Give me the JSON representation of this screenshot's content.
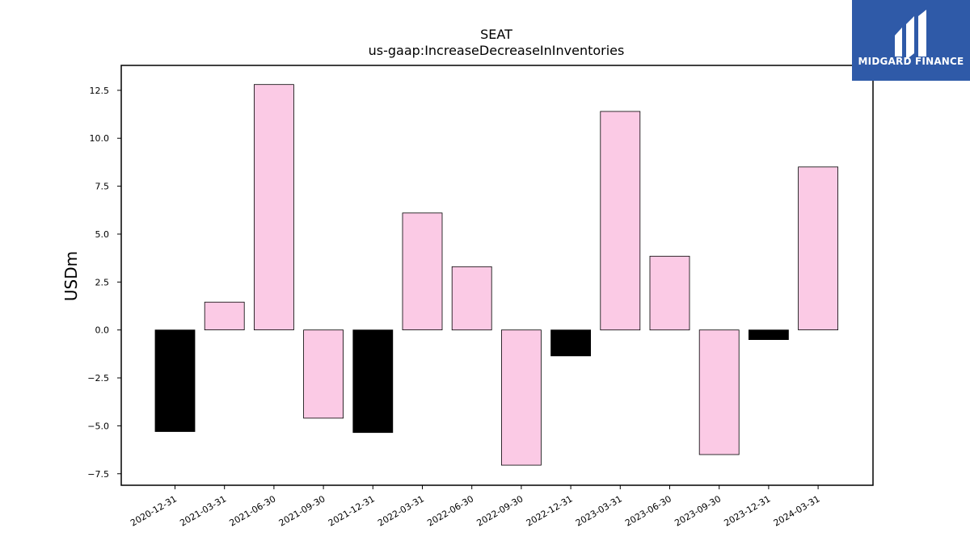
{
  "chart_data": {
    "type": "bar",
    "title": "SEAT",
    "subtitle": "us-gaap:IncreaseDecreaseInInventories",
    "xlabel": "",
    "ylabel": "USDm",
    "ylim": [
      -8.1,
      13.8
    ],
    "yticks": [
      -7.5,
      -5.0,
      -2.5,
      0.0,
      2.5,
      5.0,
      7.5,
      10.0,
      12.5
    ],
    "ytick_labels": [
      "−7.5",
      "−5.0",
      "−2.5",
      "0.0",
      "2.5",
      "5.0",
      "7.5",
      "10.0",
      "12.5"
    ],
    "categories": [
      "2020-12-31",
      "2021-03-31",
      "2021-06-30",
      "2021-09-30",
      "2021-12-31",
      "2022-03-31",
      "2022-06-30",
      "2022-09-30",
      "2022-12-31",
      "2023-03-31",
      "2023-06-30",
      "2023-09-30",
      "2023-12-31",
      "2024-03-31"
    ],
    "values": [
      -5.3,
      1.45,
      12.8,
      -4.6,
      -5.35,
      6.1,
      3.3,
      -7.05,
      -1.35,
      11.4,
      3.85,
      -6.5,
      -0.5,
      8.5
    ],
    "bar_colors": [
      "#000000",
      "#fbcae5",
      "#fbcae5",
      "#fbcae5",
      "#000000",
      "#fbcae5",
      "#fbcae5",
      "#fbcae5",
      "#000000",
      "#fbcae5",
      "#fbcae5",
      "#fbcae5",
      "#000000",
      "#fbcae5"
    ],
    "grid": false,
    "legend": "none"
  },
  "logo": {
    "text": "MIDGARD FINANCE",
    "background": "#2f5aa8",
    "icon": "midgard-logo-icon"
  }
}
